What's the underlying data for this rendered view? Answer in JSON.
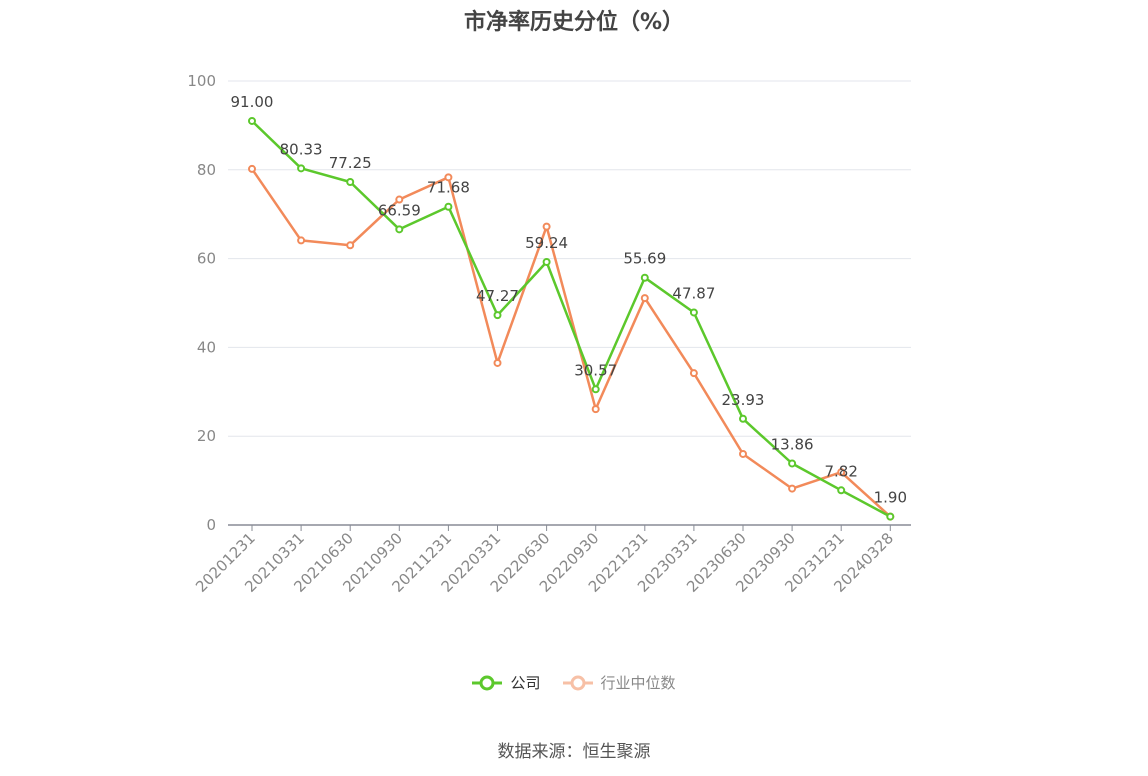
{
  "title": "市净率历史分位（%）",
  "source": "数据来源：恒生聚源",
  "chart_data": {
    "type": "line",
    "x": [
      "20201231",
      "20210331",
      "20210630",
      "20210930",
      "20211231",
      "20220331",
      "20220630",
      "20220930",
      "20221231",
      "20230331",
      "20230630",
      "20230930",
      "20231231",
      "20240328"
    ],
    "series": [
      {
        "name": "公司",
        "color": "#5cc82c",
        "values": [
          91.0,
          80.33,
          77.25,
          66.59,
          71.68,
          47.27,
          59.24,
          30.57,
          55.69,
          47.87,
          23.93,
          13.86,
          7.82,
          1.9
        ]
      },
      {
        "name": "行业中位数",
        "color": "#f28a5a",
        "values": [
          80.2,
          64.1,
          63.0,
          73.3,
          78.3,
          36.5,
          67.2,
          26.1,
          51.1,
          34.2,
          16.0,
          8.2,
          11.9,
          1.9
        ]
      }
    ],
    "data_labels": [
      "91.00",
      "80.33",
      "77.25",
      "66.59",
      "71.68",
      "47.27",
      "59.24",
      "30.57",
      "55.69",
      "47.87",
      "23.93",
      "13.86",
      "7.82",
      "1.90"
    ],
    "yticks": [
      "0",
      "20",
      "40",
      "60",
      "80",
      "100"
    ],
    "ylim": [
      0,
      100
    ],
    "grid": true,
    "legend_position": "bottom"
  }
}
